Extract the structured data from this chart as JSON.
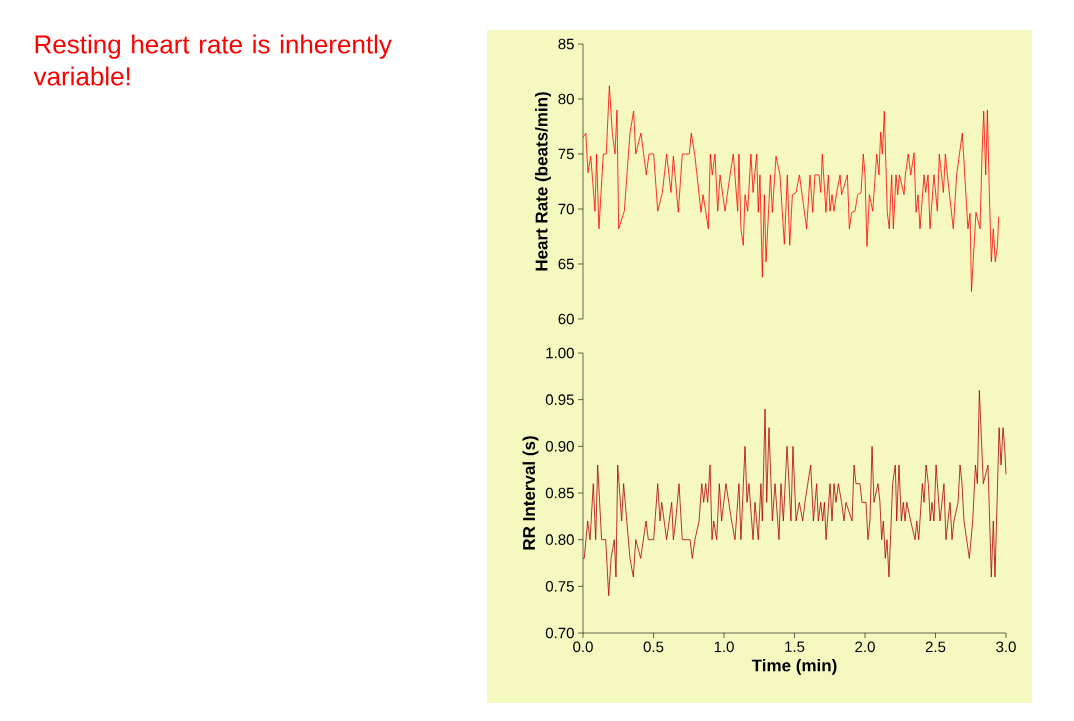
{
  "chart_data": [
    {
      "type": "other",
      "title": "Resting heart rate is inherently variable!"
    },
    {
      "type": "line",
      "ylabel": "Heart Rate (beats/min)",
      "tick_labels": "y",
      "grid": false,
      "marker": "none",
      "line_style": "solid",
      "xlim": [
        0,
        3
      ],
      "ylim": [
        60,
        85
      ],
      "yticks": [
        60,
        65,
        70,
        75,
        80,
        85
      ],
      "series": [
        {
          "color": "#ff0000",
          "x": [
            0.0,
            0.02,
            0.035,
            0.055,
            0.085,
            0.096,
            0.113,
            0.144,
            0.165,
            0.187,
            0.208,
            0.227,
            0.241,
            0.253,
            0.293,
            0.333,
            0.359,
            0.374,
            0.411,
            0.449,
            0.468,
            0.501,
            0.53,
            0.563,
            0.593,
            0.624,
            0.641,
            0.676,
            0.704,
            0.754,
            0.768,
            0.794,
            0.837,
            0.851,
            0.87,
            0.889,
            0.903,
            0.917,
            0.936,
            0.955,
            0.972,
            1.007,
            1.043,
            1.066,
            1.097,
            1.106,
            1.12,
            1.137,
            1.149,
            1.168,
            1.191,
            1.206,
            1.232,
            1.243,
            1.255,
            1.272,
            1.286,
            1.298,
            1.329,
            1.343,
            1.369,
            1.397,
            1.428,
            1.449,
            1.466,
            1.485,
            1.511,
            1.535,
            1.586,
            1.61,
            1.629,
            1.645,
            1.674,
            1.686,
            1.697,
            1.723,
            1.74,
            1.752,
            1.766,
            1.78,
            1.799,
            1.823,
            1.834,
            1.875,
            1.889,
            1.906,
            1.929,
            1.948,
            1.972,
            1.988,
            2.0,
            2.014,
            2.031,
            2.055,
            2.083,
            2.099,
            2.111,
            2.123,
            2.137,
            2.158,
            2.172,
            2.189,
            2.201,
            2.22,
            2.232,
            2.244,
            2.277,
            2.286,
            2.307,
            2.324,
            2.348,
            2.362,
            2.376,
            2.39,
            2.419,
            2.43,
            2.447,
            2.461,
            2.489,
            2.513,
            2.527,
            2.556,
            2.57,
            2.584,
            2.626,
            2.65,
            2.69,
            2.73,
            2.745,
            2.755,
            2.787,
            2.816,
            2.83,
            2.842,
            2.856,
            2.868,
            2.882,
            2.896,
            2.91,
            2.924,
            2.939,
            2.948
          ],
          "values": [
            76.5,
            76.9,
            73.3,
            74.8,
            69.8,
            75,
            68.2,
            75,
            75,
            81.2,
            76.9,
            75,
            79,
            68.2,
            69.8,
            76.9,
            78.9,
            75,
            76.9,
            73.1,
            75,
            75,
            69.8,
            71.5,
            75,
            71.5,
            74.8,
            69.7,
            75,
            75,
            76.9,
            74.8,
            69.7,
            71.3,
            69.8,
            68.2,
            75,
            73.1,
            75,
            69.8,
            73.1,
            69.8,
            73.1,
            75,
            69.8,
            75,
            68.2,
            66.7,
            71.3,
            69.8,
            75,
            71.5,
            75,
            69.7,
            73.1,
            63.8,
            71.3,
            65.2,
            73.1,
            69.7,
            74.8,
            73.1,
            66.8,
            73.1,
            66.7,
            71.3,
            71.5,
            73.1,
            68.2,
            73.1,
            69.7,
            73.1,
            73.1,
            71.5,
            75,
            69.7,
            73.1,
            69.8,
            71.3,
            69.8,
            71.5,
            73.1,
            71.3,
            73.1,
            68.2,
            69.7,
            69.8,
            71.3,
            71.5,
            75,
            73.1,
            66.6,
            71.3,
            69.8,
            75,
            73.1,
            77,
            75,
            78.9,
            69.7,
            68.2,
            73.1,
            68.2,
            73.1,
            71.3,
            73.1,
            71.3,
            73.1,
            75,
            73.1,
            75.1,
            69.7,
            71.3,
            68.2,
            73.1,
            71.5,
            73.1,
            68.2,
            73.1,
            69.8,
            75,
            71.5,
            75,
            73.1,
            68.2,
            73.1,
            76.9,
            68.2,
            69.6,
            62.5,
            69.7,
            68.2,
            75,
            78.9,
            73.1,
            79,
            71.3,
            65.2,
            68.2,
            65.2,
            66.6,
            69.3
          ]
        }
      ]
    },
    {
      "type": "line",
      "xlabel": "Time (min)",
      "ylabel": "RR Interval (s)",
      "grid": false,
      "marker": "none",
      "line_style": "solid",
      "xlim": [
        0,
        3
      ],
      "xticks": [
        {
          "value": 0,
          "label": "0.0"
        },
        {
          "value": 0.5,
          "label": "0.5"
        },
        {
          "value": 1,
          "label": "1.0"
        },
        {
          "value": 1.5,
          "label": "1.5"
        },
        {
          "value": 2,
          "label": "2.0"
        },
        {
          "value": 2.5,
          "label": "2.5"
        },
        {
          "value": 3,
          "label": "3.0"
        }
      ],
      "ylim": [
        0.7,
        1.0
      ],
      "yticks": [
        {
          "value": 0.7,
          "label": "0.70"
        },
        {
          "value": 0.75,
          "label": "0.75"
        },
        {
          "value": 0.8,
          "label": "0.80"
        },
        {
          "value": 0.85,
          "label": "0.85"
        },
        {
          "value": 0.9,
          "label": "0.90"
        },
        {
          "value": 0.95,
          "label": "0.95"
        },
        {
          "value": 1.0,
          "label": "1.00"
        }
      ],
      "series": [
        {
          "color": "#b00000",
          "x": [
            0.0,
            0.009,
            0.033,
            0.05,
            0.073,
            0.09,
            0.104,
            0.132,
            0.161,
            0.182,
            0.199,
            0.222,
            0.234,
            0.246,
            0.274,
            0.288,
            0.333,
            0.357,
            0.374,
            0.409,
            0.428,
            0.447,
            0.463,
            0.501,
            0.53,
            0.546,
            0.558,
            0.593,
            0.629,
            0.641,
            0.657,
            0.681,
            0.704,
            0.759,
            0.775,
            0.794,
            0.823,
            0.842,
            0.856,
            0.87,
            0.884,
            0.901,
            0.915,
            0.927,
            0.948,
            0.967,
            0.983,
            1.014,
            1.054,
            1.078,
            1.106,
            1.12,
            1.149,
            1.163,
            1.177,
            1.206,
            1.22,
            1.243,
            1.262,
            1.272,
            1.291,
            1.303,
            1.319,
            1.343,
            1.362,
            1.39,
            1.404,
            1.421,
            1.447,
            1.475,
            1.489,
            1.511,
            1.534,
            1.558,
            1.574,
            1.615,
            1.634,
            1.657,
            1.669,
            1.686,
            1.7,
            1.712,
            1.724,
            1.752,
            1.766,
            1.78,
            1.794,
            1.811,
            1.834,
            1.851,
            1.865,
            1.908,
            1.922,
            1.936,
            1.964,
            1.979,
            2.007,
            2.021,
            2.035,
            2.05,
            2.064,
            2.092,
            2.106,
            2.118,
            2.13,
            2.144,
            2.156,
            2.17,
            2.196,
            2.215,
            2.225,
            2.241,
            2.258,
            2.272,
            2.284,
            2.296,
            2.324,
            2.355,
            2.367,
            2.381,
            2.407,
            2.419,
            2.433,
            2.449,
            2.463,
            2.475,
            2.489,
            2.504,
            2.532,
            2.56,
            2.574,
            2.603,
            2.617,
            2.631,
            2.66,
            2.674,
            2.688,
            2.702,
            2.74,
            2.764,
            2.783,
            2.797,
            2.811,
            2.839,
            2.872,
            2.896,
            2.91,
            2.922,
            2.951,
            2.965,
            2.979,
            2.99,
            3.0
          ],
          "values": [
            0.78,
            0.78,
            0.82,
            0.8,
            0.86,
            0.8,
            0.88,
            0.8,
            0.8,
            0.74,
            0.78,
            0.8,
            0.76,
            0.88,
            0.82,
            0.86,
            0.78,
            0.76,
            0.8,
            0.78,
            0.8,
            0.82,
            0.8,
            0.8,
            0.86,
            0.82,
            0.84,
            0.8,
            0.84,
            0.8,
            0.82,
            0.86,
            0.8,
            0.8,
            0.78,
            0.8,
            0.82,
            0.86,
            0.84,
            0.86,
            0.84,
            0.88,
            0.8,
            0.82,
            0.8,
            0.86,
            0.82,
            0.86,
            0.82,
            0.8,
            0.86,
            0.8,
            0.9,
            0.84,
            0.86,
            0.8,
            0.84,
            0.8,
            0.86,
            0.82,
            0.94,
            0.84,
            0.92,
            0.82,
            0.86,
            0.8,
            0.86,
            0.82,
            0.9,
            0.82,
            0.9,
            0.82,
            0.84,
            0.82,
            0.84,
            0.88,
            0.82,
            0.86,
            0.82,
            0.84,
            0.82,
            0.84,
            0.8,
            0.86,
            0.82,
            0.86,
            0.84,
            0.86,
            0.84,
            0.82,
            0.84,
            0.82,
            0.88,
            0.86,
            0.86,
            0.84,
            0.84,
            0.8,
            0.82,
            0.9,
            0.84,
            0.86,
            0.84,
            0.8,
            0.82,
            0.78,
            0.8,
            0.76,
            0.86,
            0.88,
            0.82,
            0.88,
            0.82,
            0.84,
            0.82,
            0.84,
            0.82,
            0.8,
            0.82,
            0.8,
            0.86,
            0.84,
            0.88,
            0.86,
            0.82,
            0.84,
            0.82,
            0.88,
            0.82,
            0.86,
            0.8,
            0.84,
            0.8,
            0.82,
            0.84,
            0.88,
            0.86,
            0.82,
            0.78,
            0.82,
            0.88,
            0.86,
            0.96,
            0.86,
            0.88,
            0.76,
            0.82,
            0.76,
            0.92,
            0.88,
            0.92,
            0.9,
            0.87
          ]
        }
      ]
    }
  ]
}
